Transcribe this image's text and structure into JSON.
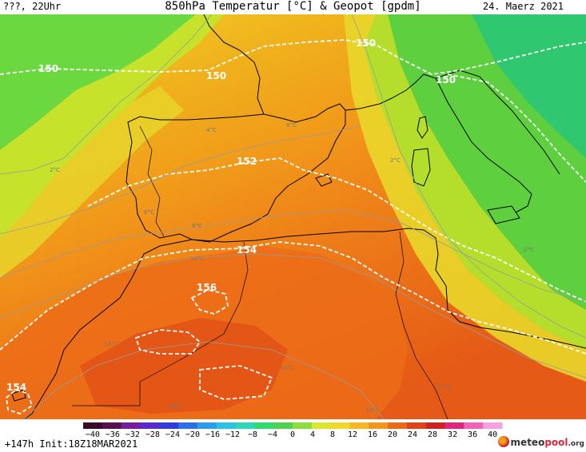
{
  "header": {
    "left_text": "???, 22Uhr",
    "title": "850hPa Temperatur [°C] & Geopot [gpdm]",
    "date": "24. Maerz 2021"
  },
  "footer": {
    "run_info": "+147h  Init:18Z18MAR2021",
    "brand_prefix": "meteo",
    "brand_mid": "pool",
    "brand_suffix": ".org"
  },
  "geopotential_labels": [
    "150",
    "150",
    "150",
    "150",
    "152",
    "154",
    "156",
    "154"
  ],
  "isotherm_labels": [
    "2°C",
    "6°C",
    "4°C",
    "8°C",
    "2°C",
    "0°C",
    "10°C",
    "14°C",
    "12°C",
    "12°C",
    "10°C",
    "12°C",
    "6°C"
  ],
  "scale": {
    "labels": [
      "−40",
      "−36",
      "−32",
      "−28",
      "−24",
      "−20",
      "−16",
      "−12",
      "−8",
      "−4",
      "0",
      "4",
      "8",
      "12",
      "16",
      "20",
      "24",
      "28",
      "32",
      "36",
      "40"
    ],
    "colors": [
      "#3a0a2a",
      "#5a0f52",
      "#7a1aa0",
      "#5a2ad0",
      "#2f3ae0",
      "#2a6ee8",
      "#2a9cec",
      "#29c2e2",
      "#2ad8b8",
      "#2fdc6e",
      "#4ed34a",
      "#8ade3a",
      "#d8e82a",
      "#f0d72a",
      "#f5b81e",
      "#f3951a",
      "#ec6a17",
      "#e04416",
      "#d02020",
      "#e0257a",
      "#f064b8",
      "#f7a0e0"
    ]
  }
}
